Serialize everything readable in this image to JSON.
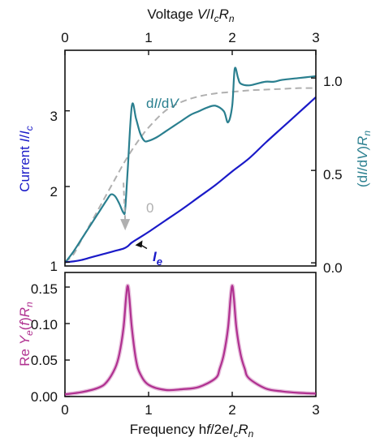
{
  "chart_data": [
    {
      "type": "line",
      "axes": {
        "bottom_frequency": {
          "range": [
            0,
            3
          ],
          "ticks": [
            "0",
            "1",
            "2",
            "3"
          ]
        },
        "top_voltage": {
          "label": {
            "prefix": "Voltage ",
            "V": "V",
            "slash": "/",
            "I": "I",
            "c": "c",
            "R": "R",
            "n": "n"
          },
          "range": [
            0,
            3
          ],
          "ticks": [
            "0",
            "1",
            "2",
            "3"
          ]
        },
        "left_current": {
          "label": {
            "prefix": "Current ",
            "I": "I",
            "slash": "/",
            "I2": "I",
            "c": "c"
          },
          "range": [
            0.95,
            3.8
          ],
          "ticks": [
            "1",
            "2",
            "3"
          ],
          "tick_values": [
            1,
            2,
            3
          ]
        },
        "right_conductance": {
          "label": {
            "open": "(d",
            "I": "I",
            "slash": "/d",
            "V": "V",
            "close": ")",
            "R": "R",
            "n": "n"
          },
          "range": [
            -0.017,
            1.15
          ],
          "ticks": [
            "0.0",
            "0.5",
            "1.0"
          ],
          "tick_values": [
            0,
            0.5,
            1.0
          ]
        }
      },
      "series": [
        {
          "name": "I_e",
          "label": {
            "I": "I",
            "e": "e"
          },
          "color": "#1a1ac8",
          "axis": "left_current",
          "x": [
            0,
            0.1,
            0.2,
            0.3,
            0.4,
            0.5,
            0.6,
            0.7,
            0.75,
            0.8,
            0.9,
            1.0,
            1.2,
            1.4,
            1.6,
            1.8,
            2.0,
            2.2,
            2.4,
            2.6,
            2.8,
            3.0
          ],
          "y": [
            1.0,
            1.01,
            1.03,
            1.06,
            1.09,
            1.12,
            1.15,
            1.18,
            1.21,
            1.26,
            1.33,
            1.4,
            1.55,
            1.7,
            1.86,
            2.02,
            2.2,
            2.37,
            2.58,
            2.78,
            2.98,
            3.18
          ]
        },
        {
          "name": "dI/dV",
          "label": {
            "d1": "d",
            "I": "I",
            "slash": "/d",
            "V": "V"
          },
          "color": "#2a7f8f",
          "axis": "right_conductance",
          "x": [
            0,
            0.1,
            0.2,
            0.3,
            0.4,
            0.5,
            0.55,
            0.6,
            0.65,
            0.7,
            0.72,
            0.75,
            0.8,
            0.85,
            0.9,
            0.95,
            1.0,
            1.1,
            1.2,
            1.3,
            1.4,
            1.5,
            1.6,
            1.7,
            1.8,
            1.9,
            1.95,
            2.0,
            2.03,
            2.07,
            2.1,
            2.2,
            2.3,
            2.4,
            2.5,
            2.6,
            2.8,
            3.0
          ],
          "y": [
            0.0,
            0.06,
            0.13,
            0.2,
            0.27,
            0.34,
            0.37,
            0.36,
            0.32,
            0.27,
            0.29,
            0.5,
            0.85,
            0.78,
            0.7,
            0.66,
            0.66,
            0.68,
            0.71,
            0.74,
            0.77,
            0.8,
            0.82,
            0.84,
            0.85,
            0.82,
            0.76,
            0.85,
            1.05,
            1.0,
            0.97,
            0.96,
            0.97,
            0.98,
            0.98,
            0.99,
            1.0,
            1.01
          ]
        },
        {
          "name": "I_0",
          "label": "0",
          "color": "#b0b0b0",
          "axis": "left_current",
          "x": [
            0,
            0.1,
            0.2,
            0.3,
            0.4,
            0.5,
            0.6,
            0.7,
            0.8,
            0.9,
            1.0,
            1.2,
            1.4,
            1.6,
            1.8,
            2.0,
            2.2,
            2.4,
            2.6,
            2.8,
            3.0
          ],
          "y": [
            1.0,
            1.1,
            1.3,
            1.5,
            1.7,
            1.9,
            2.1,
            2.3,
            2.48,
            2.64,
            2.78,
            3.0,
            3.12,
            3.19,
            3.23,
            3.25,
            3.27,
            3.28,
            3.29,
            3.3,
            3.3
          ]
        }
      ],
      "annotation_arrow": {
        "from": [
          0.7,
          2.05
        ],
        "to": [
          0.72,
          1.42
        ]
      }
    },
    {
      "type": "line",
      "axes": {
        "x": {
          "label": {
            "prefix": "Frequency h",
            "f": "f",
            "mid": "/2e",
            "I": "I",
            "c": "c",
            "R": "R",
            "n": "n"
          },
          "range": [
            0,
            3
          ],
          "ticks": [
            "0",
            "1",
            "2",
            "3"
          ]
        },
        "y": {
          "label": {
            "re": "Re ",
            "Y": "Y",
            "e": "e",
            "f_open": "(",
            "f": "f",
            "f_close": ")",
            "R": "R",
            "n": "n"
          },
          "range": [
            0,
            0.17
          ],
          "ticks": [
            "0.00",
            "0.05",
            "0.10",
            "0.15"
          ],
          "tick_values": [
            0,
            0.05,
            0.1,
            0.15
          ]
        }
      },
      "series": [
        {
          "color": "#b03090",
          "peaks": [
            0.75,
            2.0
          ],
          "peak_value": 0.152,
          "x": [
            0,
            0.2,
            0.4,
            0.5,
            0.6,
            0.65,
            0.7,
            0.73,
            0.75,
            0.77,
            0.8,
            0.85,
            0.9,
            1.0,
            1.2,
            1.4,
            1.6,
            1.8,
            1.85,
            1.9,
            1.95,
            1.98,
            2.0,
            2.02,
            2.05,
            2.1,
            2.15,
            2.2,
            2.4,
            2.6,
            2.8,
            3.0
          ],
          "y": [
            0.003,
            0.006,
            0.012,
            0.02,
            0.039,
            0.058,
            0.094,
            0.135,
            0.152,
            0.135,
            0.094,
            0.05,
            0.031,
            0.016,
            0.009,
            0.01,
            0.013,
            0.025,
            0.038,
            0.058,
            0.094,
            0.135,
            0.152,
            0.135,
            0.094,
            0.058,
            0.038,
            0.025,
            0.011,
            0.007,
            0.005,
            0.004
          ]
        }
      ]
    }
  ]
}
